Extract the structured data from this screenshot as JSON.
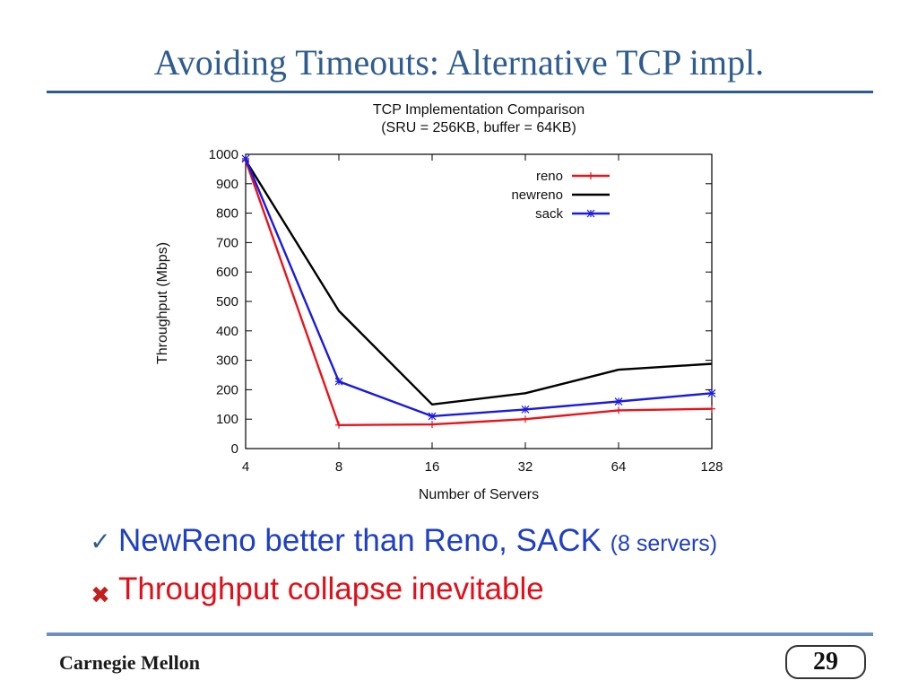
{
  "slide": {
    "title": "Avoiding Timeouts: Alternative TCP impl.",
    "bullets": [
      {
        "main": "NewReno better than Reno, SACK",
        "note": "(8 servers)"
      },
      {
        "main": "Throughput collapse inevitable"
      }
    ],
    "footer_left": "Carnegie Mellon",
    "page_number": "29",
    "colors": {
      "title": "#2e5c8e",
      "bullet1_text": "#1f3fc4",
      "bullet2_text": "#e0101a",
      "check_icon": "#2e5c8e",
      "cross_icon": "#c0201e"
    },
    "icons": [
      "check-mark-icon",
      "cross-mark-icon"
    ]
  },
  "chart_data": {
    "type": "line",
    "title": "TCP Implementation Comparison",
    "subtitle": "(SRU = 256KB, buffer = 64KB)",
    "xlabel": "Number of Servers",
    "ylabel": "Throughput (Mbps)",
    "x_scale": "log2",
    "categories": [
      "4",
      "8",
      "16",
      "32",
      "64",
      "128"
    ],
    "x": [
      4,
      8,
      16,
      32,
      64,
      128
    ],
    "ylim": [
      0,
      1000
    ],
    "yticks": [
      0,
      100,
      200,
      300,
      400,
      500,
      600,
      700,
      800,
      900,
      1000
    ],
    "grid": false,
    "legend_position": "top-right",
    "series": [
      {
        "name": "reno",
        "color": "#e8141a",
        "marker": "plus",
        "values": [
          980,
          80,
          82,
          100,
          130,
          135
        ]
      },
      {
        "name": "newreno",
        "color": "#000000",
        "marker": "none",
        "values": [
          980,
          468,
          150,
          188,
          268,
          288
        ]
      },
      {
        "name": "sack",
        "color": "#1a1ae0",
        "marker": "star",
        "values": [
          985,
          228,
          110,
          133,
          160,
          188
        ]
      }
    ]
  }
}
